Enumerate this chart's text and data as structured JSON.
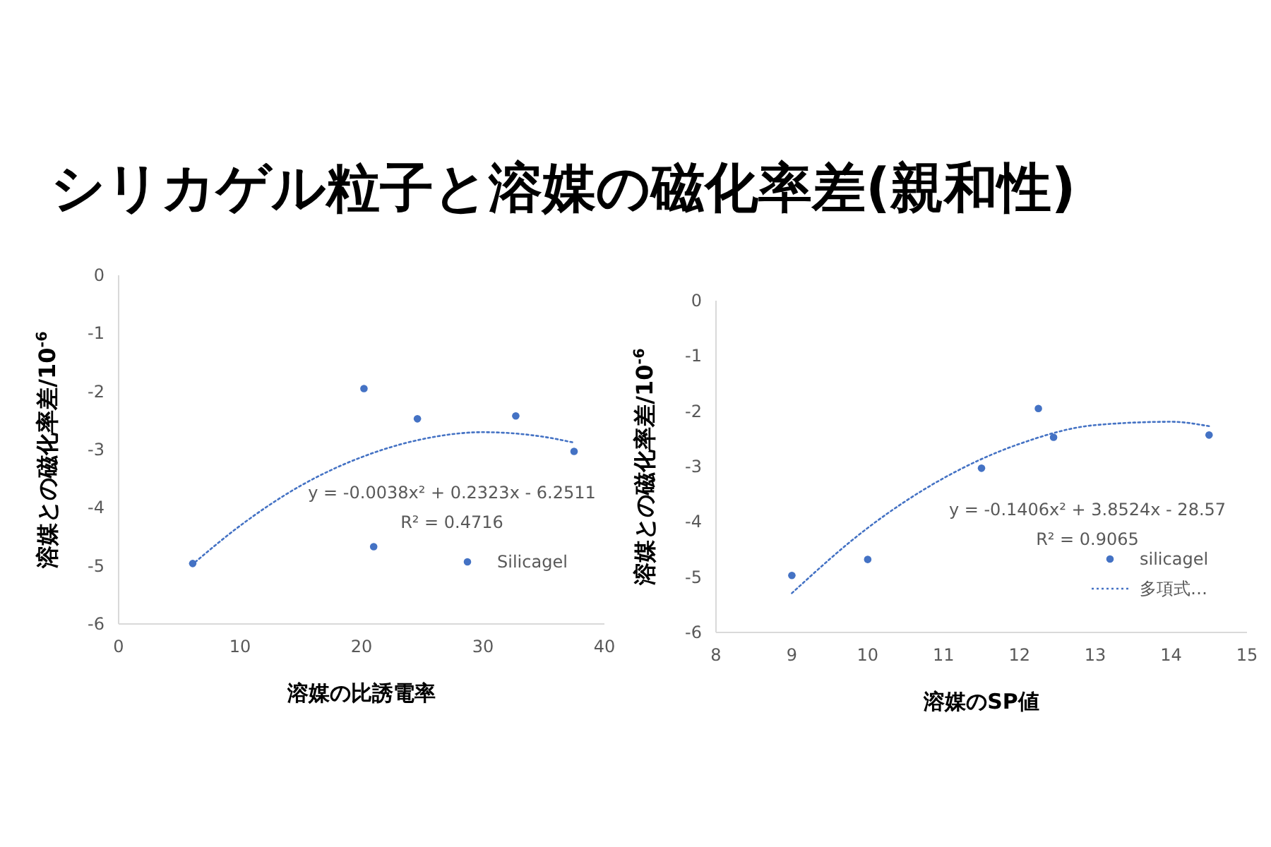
{
  "chart_data": [
    {
      "type": "scatter",
      "title": "シリカゲル粒子と溶媒の磁化率差(親和性)",
      "xlabel": "溶媒の比誘電率",
      "ylabel": "溶媒との磁化率差/10$^{-6}$",
      "xlim": [
        0,
        40
      ],
      "xticks": [
        0,
        10,
        20,
        30,
        40
      ],
      "ylim": [
        -6,
        0
      ],
      "yticks": [
        0,
        -1,
        -2,
        -3,
        -4,
        -5,
        -6
      ],
      "grid": false,
      "legend": "bottom right",
      "annotations": [
        "y = -0.0038x² + 0.2323x - 6.2511",
        "R² = 0.4716"
      ],
      "series": [
        {
          "name": "Silicagel",
          "color": "#4472c4",
          "marker": "circle",
          "x": [
            6.1,
            20.2,
            21.0,
            24.6,
            32.7,
            37.5
          ],
          "values": [
            -4.96,
            -1.95,
            -4.67,
            -2.47,
            -2.42,
            -3.03
          ]
        },
        {
          "type": "line",
          "color": "#4472c4",
          "marker": "none",
          "line_style": "dotted",
          "x": [
            6,
            10,
            15,
            20,
            25,
            30,
            35,
            37.5
          ],
          "values": [
            -4.99,
            -4.31,
            -3.62,
            -3.13,
            -2.82,
            -2.7,
            -2.78,
            -2.88
          ]
        }
      ]
    },
    {
      "type": "scatter",
      "xlabel": "溶媒のSP値",
      "ylabel": "溶媒との磁化率差/10$^{-6}$",
      "xlim": [
        8,
        15
      ],
      "xticks": [
        8,
        9,
        10,
        11,
        12,
        13,
        14,
        15
      ],
      "ylim": [
        -6,
        0
      ],
      "yticks": [
        0,
        -1,
        -2,
        -3,
        -4,
        -5,
        -6
      ],
      "grid": false,
      "legend": "bottom right",
      "annotations": [
        "y = -0.1406x² + 3.8524x - 28.57",
        "R² = 0.9065"
      ],
      "series": [
        {
          "name": "silicagel",
          "color": "#4472c4",
          "marker": "circle",
          "x": [
            9.0,
            10.0,
            11.5,
            12.25,
            12.45,
            14.5
          ],
          "values": [
            -4.97,
            -4.68,
            -3.03,
            -1.95,
            -2.47,
            -2.43
          ]
        },
        {
          "type": "line",
          "name": "多項式…",
          "color": "#4472c4",
          "marker": "none",
          "line_style": "dotted",
          "x": [
            9,
            10,
            11,
            12,
            13,
            14,
            14.5
          ],
          "values": [
            -5.29,
            -4.11,
            -3.21,
            -2.59,
            -2.25,
            -2.19,
            -2.27
          ]
        }
      ]
    }
  ]
}
